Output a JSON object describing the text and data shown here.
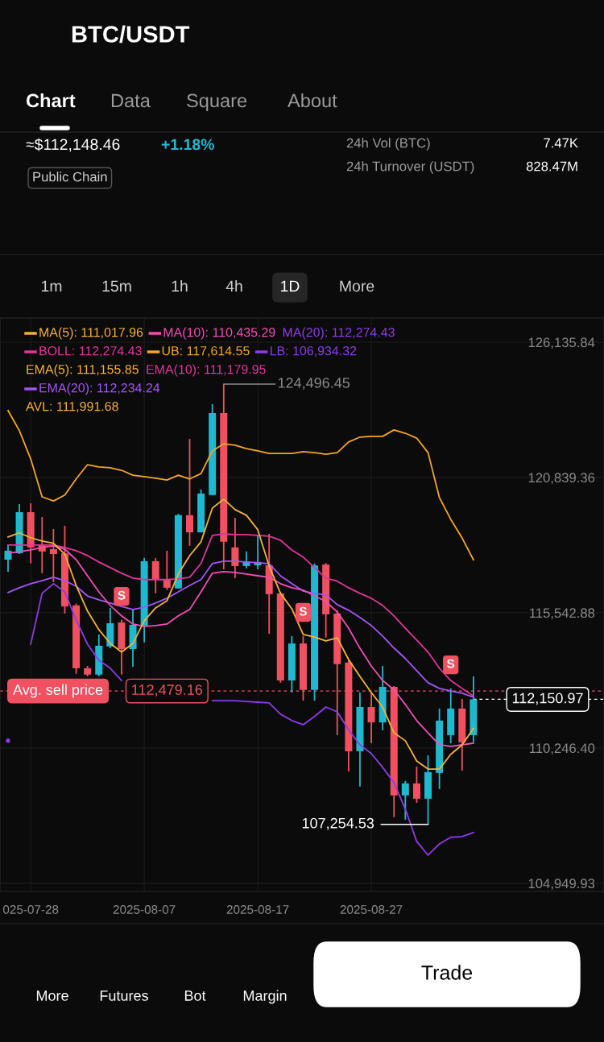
{
  "chart_data": {
    "type": "candlestick",
    "title": "BTC/USDT",
    "x": [
      "2025-07-26",
      "2025-07-27",
      "2025-07-28",
      "2025-07-29",
      "2025-07-30",
      "2025-07-31",
      "2025-08-01",
      "2025-08-02",
      "2025-08-03",
      "2025-08-04",
      "2025-08-05",
      "2025-08-06",
      "2025-08-07",
      "2025-08-08",
      "2025-08-09",
      "2025-08-10",
      "2025-08-11",
      "2025-08-12",
      "2025-08-13",
      "2025-08-14",
      "2025-08-15",
      "2025-08-16",
      "2025-08-17",
      "2025-08-18",
      "2025-08-19",
      "2025-08-20",
      "2025-08-21",
      "2025-08-22",
      "2025-08-23",
      "2025-08-24",
      "2025-08-25",
      "2025-08-26",
      "2025-08-27",
      "2025-08-28",
      "2025-08-29",
      "2025-08-30",
      "2025-08-31",
      "2025-09-01",
      "2025-09-02",
      "2025-09-03",
      "2025-09-04",
      "2025-09-05"
    ],
    "ohlc": [
      [
        117620,
        118190,
        117150,
        117970
      ],
      [
        117870,
        119800,
        117840,
        119480
      ],
      [
        119480,
        119830,
        117470,
        118100
      ],
      [
        118190,
        119290,
        117090,
        117940
      ],
      [
        118030,
        118820,
        116740,
        117840
      ],
      [
        117870,
        118950,
        115510,
        115790
      ],
      [
        115830,
        115900,
        113150,
        113370
      ],
      [
        113370,
        113460,
        113050,
        113120
      ],
      [
        113120,
        114690,
        113050,
        114250
      ],
      [
        114220,
        115730,
        114150,
        115130
      ],
      [
        115160,
        115260,
        113120,
        114120
      ],
      [
        114120,
        115670,
        113430,
        115070
      ],
      [
        115040,
        117690,
        114380,
        117560
      ],
      [
        117560,
        117690,
        116300,
        116840
      ],
      [
        116840,
        117970,
        116430,
        116520
      ],
      [
        116490,
        119420,
        116490,
        119360
      ],
      [
        119360,
        122350,
        118160,
        118690
      ],
      [
        118690,
        120370,
        118690,
        120210
      ],
      [
        120150,
        123710,
        120150,
        123360
      ],
      [
        123360,
        124496.45,
        117240,
        118320
      ],
      [
        118100,
        119260,
        116900,
        117370
      ],
      [
        117370,
        117940,
        117280,
        117530
      ],
      [
        117400,
        118570,
        117240,
        117530
      ],
      [
        117400,
        118630,
        114720,
        116270
      ],
      [
        116300,
        116360,
        112800,
        112890
      ],
      [
        112890,
        114630,
        112420,
        114340
      ],
      [
        114340,
        114630,
        112100,
        112520
      ],
      [
        112520,
        117470,
        112100,
        117390
      ],
      [
        117430,
        117490,
        114570,
        115480
      ],
      [
        115510,
        115640,
        110750,
        113530
      ],
      [
        113590,
        113680,
        109330,
        110120
      ],
      [
        110120,
        112420,
        108740,
        111850
      ],
      [
        111850,
        112420,
        110430,
        111250
      ],
      [
        111250,
        113460,
        110940,
        112640
      ],
      [
        112640,
        112670,
        107540,
        108390
      ],
      [
        108390,
        108960,
        107440,
        108860
      ],
      [
        108860,
        109520,
        108100,
        108260
      ],
      [
        108260,
        109960,
        107254.53,
        109300
      ],
      [
        109270,
        111790,
        108640,
        111320
      ],
      [
        110750,
        112580,
        110430,
        111790
      ],
      [
        111790,
        112170,
        109360,
        110470
      ],
      [
        110750,
        113050,
        110470,
        112150.97
      ]
    ],
    "colors": [
      "#1fb8cf",
      "#1fb8cf",
      "#f0505f",
      "#f0505f",
      "#f0505f",
      "#f0505f",
      "#f0505f",
      "#f0505f",
      "#1fb8cf",
      "#1fb8cf",
      "#f0505f",
      "#1fb8cf",
      "#1fb8cf",
      "#f0505f",
      "#f0505f",
      "#1fb8cf",
      "#f0505f",
      "#1fb8cf",
      "#1fb8cf",
      "#f0505f",
      "#f0505f",
      "#1fb8cf",
      "#1fb8cf",
      "#f0505f",
      "#f0505f",
      "#1fb8cf",
      "#f0505f",
      "#1fb8cf",
      "#f0505f",
      "#f0505f",
      "#f0505f",
      "#1fb8cf",
      "#f0505f",
      "#1fb8cf",
      "#f0505f",
      "#1fb8cf",
      "#f0505f",
      "#1fb8cf",
      "#1fb8cf",
      "#1fb8cf",
      "#f0505f",
      "#1fb8cf"
    ],
    "series": [
      {
        "name": "UB: 117,614.55",
        "type": "line",
        "color": "#f5a623",
        "values": [
          123460,
          122670,
          121560,
          120080,
          119920,
          120150,
          120780,
          121340,
          121250,
          121220,
          121120,
          120930,
          120870,
          120810,
          120740,
          120930,
          120780,
          120990,
          121880,
          122160,
          122100,
          121970,
          121880,
          121780,
          121780,
          121780,
          121850,
          121810,
          121750,
          121810,
          122230,
          122420,
          122450,
          122450,
          122700,
          122570,
          122380,
          121810,
          120050,
          119200,
          118470,
          117614.55
        ]
      },
      {
        "name": "BOLL: 112,274.43",
        "type": "line",
        "color": "#e0359a",
        "values": [
          118190,
          118190,
          118190,
          118190,
          118190,
          118100,
          117970,
          117780,
          117530,
          117310,
          117090,
          116900,
          116840,
          116840,
          116840,
          116870,
          116930,
          117470,
          118570,
          118630,
          118600,
          118600,
          118570,
          118540,
          118380,
          118000,
          117720,
          117310,
          116900,
          116780,
          116520,
          116300,
          116110,
          115830,
          115420,
          114940,
          114470,
          114000,
          113370,
          112890,
          112580,
          112274.43
        ]
      },
      {
        "name": "LB: 106,934.32",
        "type": "line",
        "color": "#8e3be8",
        "values": [
          110530,
          null,
          114310,
          116300,
          116680,
          116360,
          115260,
          114310,
          113680,
          113370,
          112890,
          null,
          null,
          null,
          null,
          null,
          null,
          null,
          112100,
          112100,
          112100,
          112070,
          112040,
          112010,
          111570,
          111320,
          111160,
          111480,
          111850,
          111660,
          110970,
          110370,
          110030,
          109490,
          108890,
          107850,
          106590,
          106050,
          106490,
          106750,
          106780,
          106934.32
        ]
      },
      {
        "name": "EMA(20): 112,234.24",
        "type": "line",
        "color": "#a455f5",
        "values": [
          116330,
          116520,
          116680,
          116800,
          116930,
          116800,
          116580,
          116200,
          116050,
          115920,
          115790,
          115670,
          115760,
          115920,
          116110,
          116360,
          116610,
          116840,
          117470,
          117560,
          117560,
          117530,
          117500,
          117470,
          116990,
          116680,
          116390,
          116300,
          116240,
          115860,
          115640,
          115360,
          115040,
          114630,
          114160,
          113750,
          113270,
          112800,
          112580,
          112480,
          112390,
          112234.24
        ]
      },
      {
        "name": "MA(10): 110,435.29",
        "type": "line",
        "color": "#f04fb5",
        "values": [
          117870,
          117930,
          118000,
          118100,
          118160,
          118030,
          117620,
          116990,
          116360,
          115830,
          115420,
          115100,
          115010,
          115040,
          115100,
          115420,
          115670,
          116360,
          117090,
          117150,
          117120,
          117060,
          116990,
          116930,
          116680,
          116520,
          116430,
          116200,
          115980,
          115570,
          114940,
          114150,
          113460,
          112890,
          112520,
          111950,
          111320,
          110840,
          110370,
          110310,
          110370,
          110435.29
        ]
      },
      {
        "name": "MA(5): 111,017.96",
        "type": "line",
        "color": "#f5b13a",
        "values": [
          118510,
          118670,
          118480,
          118350,
          118260,
          117840,
          116610,
          115610,
          114880,
          114340,
          114000,
          114340,
          115230,
          115730,
          116010,
          117060,
          117780,
          118320,
          119640,
          119990,
          119580,
          119360,
          118790,
          117370,
          116300,
          115700,
          114690,
          114590,
          114440,
          114560,
          113710,
          113050,
          112420,
          111850,
          110840,
          110530,
          109740,
          109420,
          109420,
          110000,
          110370,
          111017.96
        ]
      }
    ],
    "xlim": [
      "2025-07-25T07:00",
      "2025-09-16T12:00"
    ],
    "xticks": [
      {
        "value": "2025-07-28",
        "label": "025-07-28"
      },
      "2025-08-07",
      "2025-08-17",
      "2025-08-27"
    ],
    "ylim": [
      104630,
      127080
    ],
    "yticks": [
      {
        "value": 104949.93,
        "label": "104,949.93"
      },
      {
        "value": 110246.4,
        "label": "110,246.40"
      },
      {
        "value": 115542.88,
        "label": "115,542.88"
      },
      {
        "value": 120839.36,
        "label": "120,839.36"
      },
      {
        "value": 126135.84,
        "label": "126,135.84"
      }
    ],
    "grid": true,
    "legend": "top left",
    "ref_lines": [
      {
        "axis": "y",
        "value": 112479.16,
        "label": "Avg. sell price",
        "color": "#f0505f",
        "line_style": "dashed"
      },
      {
        "axis": "y",
        "value": 112150.97,
        "label": "112,150.97",
        "color": "#ffffff",
        "line_style": "dashed"
      }
    ],
    "annotations": [
      "Chart",
      "Data",
      "Square",
      "About",
      "≈$112,148.46",
      "+1.18%",
      "Public Chain",
      "24h Vol (BTC)",
      "7.47K",
      "24h Turnover (USDT)",
      "828.47M",
      "1m",
      "15m",
      "1h",
      "4h",
      "1D",
      "More",
      "MA(20): 112,274.43",
      "EMA(5): 111,155.85",
      "EMA(10): 111,179.95",
      "AVL: 111,991.68",
      "More",
      "Futures",
      "Bot",
      "Margin",
      "Trade",
      {
        "text": "124,496.45",
        "x": "2025-08-14",
        "y": 124496.45
      },
      {
        "text": "107,254.53",
        "x": "2025-09-01",
        "y": 107254.53
      },
      {
        "text": "112,479.16",
        "x": "2025-08-09",
        "y": 112479.16
      },
      {
        "text": "S",
        "x": "2025-08-05",
        "y": 115260
      },
      {
        "text": "S",
        "x": "2025-08-21",
        "y": 114630
      },
      {
        "text": "S",
        "x": "2025-09-03",
        "y": 112580
      }
    ]
  }
}
